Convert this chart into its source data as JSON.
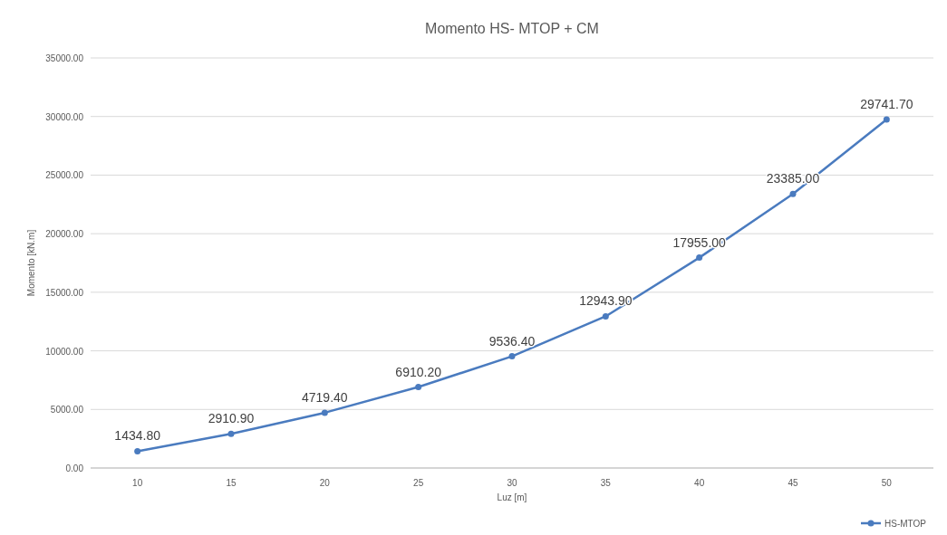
{
  "chart_data": {
    "type": "line",
    "title": "Momento HS- MTOP + CM",
    "xlabel": "Luz [m]",
    "ylabel": "Momento [kN.m]",
    "categories": [
      "10",
      "15",
      "20",
      "25",
      "30",
      "35",
      "40",
      "45",
      "50"
    ],
    "series": [
      {
        "name": "HS-MTOP",
        "color": "#4a7bbf",
        "values": [
          1434.8,
          2910.9,
          4719.4,
          6910.2,
          9536.4,
          12943.9,
          17955,
          23385,
          29741.7
        ],
        "value_labels": [
          "1434.80",
          "2910.90",
          "4719.40",
          "6910.20",
          "9536.40",
          "12943.90",
          "17955.00",
          "23385.00",
          "29741.70"
        ]
      }
    ],
    "ylim": [
      0,
      35000
    ],
    "yticks": [
      {
        "value": 0,
        "label": "0.00"
      },
      {
        "value": 5000,
        "label": "5000.00"
      },
      {
        "value": 10000,
        "label": "10000.00"
      },
      {
        "value": 15000,
        "label": "15000.00"
      },
      {
        "value": 20000,
        "label": "20000.00"
      },
      {
        "value": 25000,
        "label": "25000.00"
      },
      {
        "value": 30000,
        "label": "30000.00"
      },
      {
        "value": 35000,
        "label": "35000.00"
      }
    ],
    "grid": "y",
    "legend": "bottom right",
    "marker": "circle",
    "line_style": "solid"
  }
}
